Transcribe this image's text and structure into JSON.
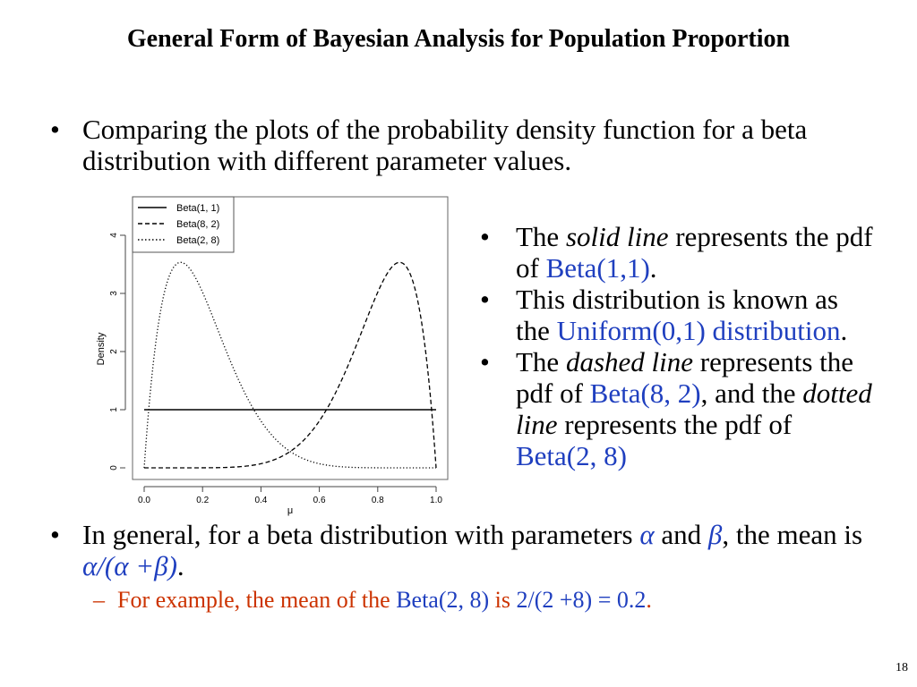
{
  "slide": {
    "title": "General Form of Bayesian Analysis for Population Proportion",
    "page_number": "18"
  },
  "intro": {
    "text": "Comparing the plots of the probability density function for a beta distribution with different parameter values."
  },
  "side_bullets": {
    "b1": {
      "p1": "The ",
      "p2": "solid line",
      "p3": " represents the pdf of ",
      "p4": "Beta(1,1)",
      "p5": "."
    },
    "b2": {
      "p1": "This distribution is known as the ",
      "p2": "Uniform(0,1) distribution",
      "p3": "."
    },
    "b3": {
      "p1": "The ",
      "p2": "dashed line",
      "p3": " represents the pdf of ",
      "p4": "Beta(8, 2)",
      "p5": ", and the ",
      "p6": "dotted line",
      "p7": " represents the pdf of ",
      "p8": "Beta(2, 8)"
    }
  },
  "general": {
    "p1": "In general, for a beta distribution with parameters ",
    "p2": "α",
    "p3": " and ",
    "p4": "β",
    "p5": ", the mean is ",
    "p6": "α/(α +β)",
    "p7": "."
  },
  "example": {
    "dash": "–",
    "p1": "For example, the mean of the ",
    "p2": "Beta(2, 8)",
    "p3": " is ",
    "p4": "2/(2 +8) = 0.2",
    "p5": "."
  },
  "colors": {
    "accent_blue": "#1f3fbf",
    "example_red": "#cc3300"
  },
  "chart_data": {
    "type": "line",
    "title": "",
    "xlabel": "μ",
    "ylabel": "Density",
    "xlim": [
      0,
      1
    ],
    "ylim": [
      0,
      4.2
    ],
    "x_ticks": [
      "0.0",
      "0.2",
      "0.4",
      "0.6",
      "0.8",
      "1.0"
    ],
    "y_ticks": [
      "0",
      "1",
      "2",
      "3",
      "4"
    ],
    "grid": false,
    "legend_position": "top-left",
    "series": [
      {
        "name": "Beta(1, 1)",
        "style": "solid",
        "alpha": 1,
        "beta": 1
      },
      {
        "name": "Beta(8, 2)",
        "style": "dashed",
        "alpha": 8,
        "beta": 2
      },
      {
        "name": "Beta(2, 8)",
        "style": "dotted",
        "alpha": 2,
        "beta": 8
      }
    ]
  }
}
